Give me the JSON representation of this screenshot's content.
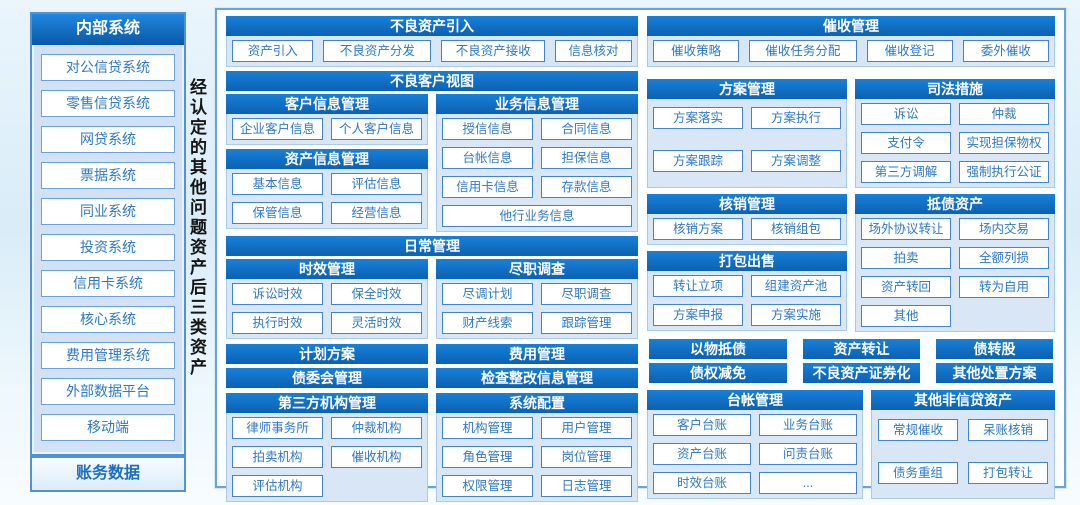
{
  "colors": {
    "header_blue": "#0f6cc4",
    "body_blue": "#d8e6f6",
    "border_blue": "#4f93d2",
    "button_text_blue": "#2e79c9",
    "page_bg": "#d9ecf8"
  },
  "sidebar": {
    "title": "内部系统",
    "items": [
      "对公信贷系统",
      "零售信贷系统",
      "网贷系统",
      "票据系统",
      "同业系统",
      "投资系统",
      "信用卡系统",
      "核心系统",
      "费用管理系统",
      "外部数据平台",
      "移动端"
    ],
    "footer": "账务数据"
  },
  "vertical_label": "经认定的其他问题资产后三类资产",
  "main": {
    "asset_intro": {
      "title": "不良资产引入",
      "items": [
        "资产引入",
        "不良资产分发",
        "不良资产接收",
        "信息核对"
      ]
    },
    "bad_customer_view": {
      "title": "不良客户视图",
      "customer_info": {
        "title": "客户信息管理",
        "items": [
          "企业客户信息",
          "个人客户信息"
        ]
      },
      "asset_info": {
        "title": "资产信息管理",
        "items": [
          "基本信息",
          "评估信息",
          "保管信息",
          "经营信息"
        ]
      },
      "business_info": {
        "title": "业务信息管理",
        "items": [
          "授信信息",
          "合同信息",
          "台帐信息",
          "担保信息",
          "信用卡信息",
          "存款信息",
          "他行业务信息"
        ]
      }
    },
    "daily": {
      "title": "日常管理",
      "limitation": {
        "title": "时效管理",
        "items": [
          "诉讼时效",
          "保全时效",
          "执行时效",
          "灵活时效"
        ]
      },
      "due_diligence": {
        "title": "尽职调查",
        "items": [
          "尽调计划",
          "尽职调查",
          "财产线索",
          "跟踪管理"
        ]
      }
    },
    "left_bars": [
      "计划方案",
      "费用管理",
      "债委会管理",
      "检查整改信息管理"
    ],
    "third_party": {
      "title": "第三方机构管理",
      "items": [
        "律师事务所",
        "仲裁机构",
        "拍卖机构",
        "催收机构",
        "评估机构"
      ]
    },
    "system_config": {
      "title": "系统配置",
      "items": [
        "机构管理",
        "用户管理",
        "角色管理",
        "岗位管理",
        "权限管理",
        "日志管理"
      ]
    },
    "collection": {
      "title": "催收管理",
      "items": [
        "催收策略",
        "催收任务分配",
        "催收登记",
        "委外催收"
      ]
    },
    "plan_mgmt": {
      "title": "方案管理",
      "items": [
        "方案落实",
        "方案执行",
        "方案跟踪",
        "方案调整"
      ]
    },
    "judicial": {
      "title": "司法措施",
      "items": [
        "诉讼",
        "仲裁",
        "支付令",
        "实现担保物权",
        "第三方调解",
        "强制执行公证"
      ]
    },
    "writeoff": {
      "title": "核销管理",
      "items": [
        "核销方案",
        "核销组包"
      ]
    },
    "package_sale": {
      "title": "打包出售",
      "items": [
        "转让立项",
        "组建资产池",
        "方案申报",
        "方案实施"
      ]
    },
    "debt_assets": {
      "title": "抵债资产",
      "items": [
        "场外协议转让",
        "场内交易",
        "拍卖",
        "全额列损",
        "资产转回",
        "转为自用",
        "其他"
      ]
    },
    "disposal_bars": [
      "以物抵债",
      "资产转让",
      "债转股",
      "债权减免",
      "不良资产证券化",
      "其他处置方案"
    ],
    "ledger": {
      "title": "台帐管理",
      "items": [
        "客户台账",
        "业务台账",
        "资产台账",
        "问责台账",
        "时效台账",
        "..."
      ]
    },
    "other_noncredit": {
      "title": "其他非信贷资产",
      "items": [
        "常规催收",
        "呆账核销",
        "债务重组",
        "打包转让"
      ]
    }
  }
}
